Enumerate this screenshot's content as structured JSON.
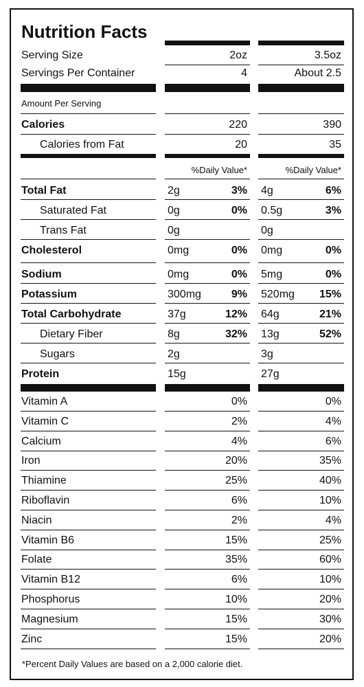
{
  "title": "Nutrition Facts",
  "serving": {
    "size_label": "Serving Size",
    "size_a": "2oz",
    "size_b": "3.5oz",
    "per_label": "Servings Per Container",
    "per_a": "4",
    "per_b": "About 2.5"
  },
  "amount_per_serving": "Amount Per Serving",
  "calories": {
    "label": "Calories",
    "a": "220",
    "b": "390"
  },
  "calories_fat": {
    "label": "Calories from Fat",
    "a": "20",
    "b": "35"
  },
  "dv_header": {
    "a": "%Daily Value*",
    "b": "%Daily Value*"
  },
  "nutrients": [
    {
      "label": "Total Fat",
      "bold": true,
      "indent": false,
      "a_amt": "2g",
      "a_pct": "3%",
      "b_amt": "4g",
      "b_pct": "6%"
    },
    {
      "label": "Saturated Fat",
      "bold": false,
      "indent": true,
      "a_amt": "0g",
      "a_pct": "0%",
      "b_amt": "0.5g",
      "b_pct": "3%"
    },
    {
      "label": "Trans Fat",
      "bold": false,
      "indent": true,
      "a_amt": "0g",
      "a_pct": "",
      "b_amt": "0g",
      "b_pct": ""
    },
    {
      "label": "Cholesterol",
      "bold": true,
      "indent": false,
      "a_amt": "0mg",
      "a_pct": "0%",
      "b_amt": "0mg",
      "b_pct": "0%"
    },
    {
      "label": "Sodium",
      "bold": true,
      "indent": false,
      "a_amt": "0mg",
      "a_pct": "0%",
      "b_amt": "5mg",
      "b_pct": "0%"
    },
    {
      "label": "Potassium",
      "bold": true,
      "indent": false,
      "a_amt": "300mg",
      "a_pct": "9%",
      "b_amt": "520mg",
      "b_pct": "15%"
    },
    {
      "label": "Total Carbohydrate",
      "bold": true,
      "indent": false,
      "a_amt": "37g",
      "a_pct": "12%",
      "b_amt": "64g",
      "b_pct": "21%"
    },
    {
      "label": "Dietary Fiber",
      "bold": false,
      "indent": true,
      "a_amt": "8g",
      "a_pct": "32%",
      "b_amt": "13g",
      "b_pct": "52%"
    },
    {
      "label": "Sugars",
      "bold": false,
      "indent": true,
      "a_amt": "2g",
      "a_pct": "",
      "b_amt": "3g",
      "b_pct": ""
    },
    {
      "label": "Protein",
      "bold": true,
      "indent": false,
      "a_amt": "15g",
      "a_pct": "",
      "b_amt": "27g",
      "b_pct": ""
    }
  ],
  "vitamins": [
    {
      "label": "Vitamin A",
      "a": "0%",
      "b": "0%"
    },
    {
      "label": "Vitamin C",
      "a": "2%",
      "b": "4%"
    },
    {
      "label": "Calcium",
      "a": "4%",
      "b": "6%"
    },
    {
      "label": "Iron",
      "a": "20%",
      "b": "35%"
    },
    {
      "label": "Thiamine",
      "a": "25%",
      "b": "40%"
    },
    {
      "label": "Riboflavin",
      "a": "6%",
      "b": "10%"
    },
    {
      "label": "Niacin",
      "a": "2%",
      "b": "4%"
    },
    {
      "label": "Vitamin B6",
      "a": "15%",
      "b": "25%"
    },
    {
      "label": "Folate",
      "a": "35%",
      "b": "60%"
    },
    {
      "label": "Vitamin B12",
      "a": "6%",
      "b": "10%"
    },
    {
      "label": "Phosphorus",
      "a": "10%",
      "b": "20%"
    },
    {
      "label": "Magnesium",
      "a": "15%",
      "b": "30%"
    },
    {
      "label": "Zinc",
      "a": "15%",
      "b": "20%"
    }
  ],
  "footnote": "*Percent Daily Values are based on a 2,000 calorie diet."
}
